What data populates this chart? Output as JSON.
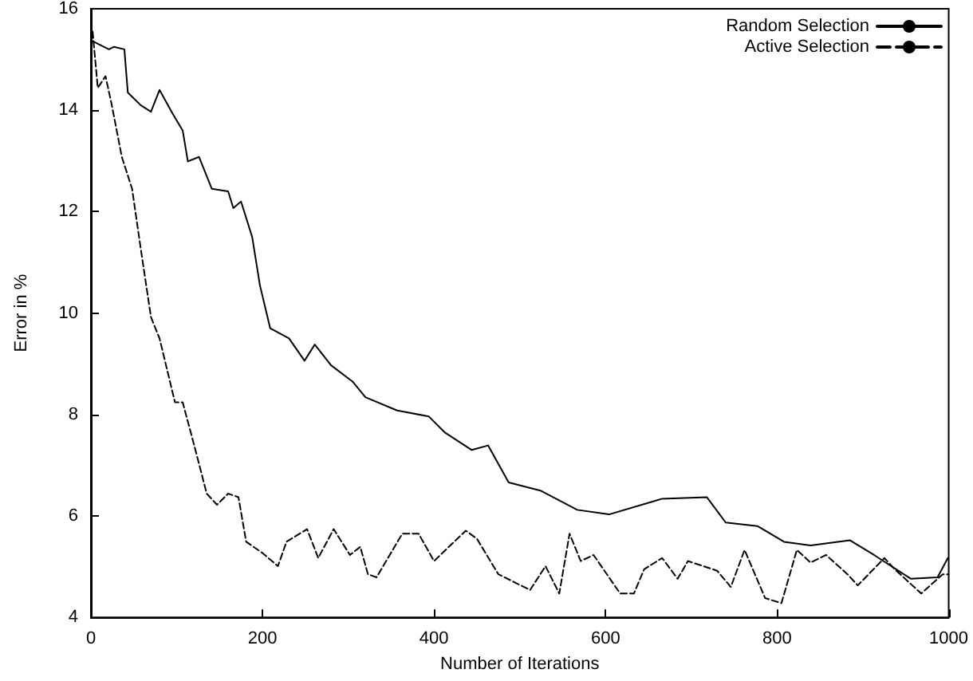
{
  "chart_data": {
    "type": "line",
    "xlabel": "Number of Iterations",
    "ylabel": "Error in %",
    "xlim": [
      0,
      1000
    ],
    "xticks": [
      0,
      200,
      400,
      600,
      800,
      1000
    ],
    "ylim": [
      4,
      16
    ],
    "yticks": [
      4,
      6,
      8,
      10,
      12,
      14,
      16
    ],
    "grid": false,
    "legend": "top right",
    "marker": "none",
    "series": [
      {
        "name": "Random Selection",
        "color": "#000000",
        "line_style": "solid",
        "x": [
          2,
          21,
          27,
          39,
          43,
          58,
          70,
          80,
          95,
          107,
          113,
          126,
          141,
          160,
          166,
          175,
          188,
          197,
          209,
          231,
          249,
          261,
          280,
          305,
          320,
          357,
          394,
          413,
          444,
          463,
          487,
          524,
          567,
          604,
          654,
          666,
          718,
          740,
          777,
          808,
          839,
          885,
          913,
          956,
          987,
          999
        ],
        "values": [
          15.36,
          15.2,
          15.25,
          15.2,
          14.35,
          14.1,
          13.97,
          14.4,
          13.94,
          13.6,
          12.99,
          13.08,
          12.45,
          12.4,
          12.07,
          12.2,
          11.5,
          10.55,
          9.7,
          9.5,
          9.06,
          9.38,
          8.97,
          8.65,
          8.34,
          8.08,
          7.96,
          7.64,
          7.3,
          7.39,
          6.66,
          6.5,
          6.12,
          6.03,
          6.28,
          6.34,
          6.37,
          5.87,
          5.8,
          5.49,
          5.42,
          5.52,
          5.23,
          4.76,
          4.79,
          5.17
        ]
      },
      {
        "name": "Active Selection",
        "color": "#000000",
        "line_style": "dashed",
        "x": [
          2,
          8,
          17,
          24,
          36,
          48,
          58,
          70,
          80,
          89,
          98,
          107,
          122,
          135,
          147,
          160,
          172,
          181,
          200,
          218,
          228,
          252,
          265,
          283,
          302,
          314,
          323,
          333,
          363,
          382,
          400,
          437,
          450,
          475,
          512,
          530,
          546,
          558,
          571,
          586,
          617,
          633,
          645,
          666,
          684,
          696,
          730,
          746,
          762,
          786,
          805,
          823,
          839,
          857,
          882,
          894,
          925,
          937,
          968,
          993,
          1000
        ],
        "values": [
          15.55,
          14.44,
          14.67,
          14.13,
          13.08,
          12.45,
          11.28,
          9.92,
          9.5,
          8.87,
          8.24,
          8.24,
          7.29,
          6.44,
          6.22,
          6.44,
          6.37,
          5.49,
          5.27,
          5.01,
          5.49,
          5.74,
          5.17,
          5.74,
          5.23,
          5.39,
          4.85,
          4.79,
          5.65,
          5.65,
          5.11,
          5.71,
          5.55,
          4.85,
          4.54,
          5.01,
          4.47,
          5.65,
          5.11,
          5.23,
          4.47,
          4.47,
          4.95,
          5.17,
          4.76,
          5.11,
          4.92,
          4.6,
          5.33,
          4.38,
          4.28,
          5.33,
          5.08,
          5.23,
          4.85,
          4.63,
          5.17,
          4.95,
          4.47,
          4.85,
          4.85
        ]
      }
    ]
  }
}
